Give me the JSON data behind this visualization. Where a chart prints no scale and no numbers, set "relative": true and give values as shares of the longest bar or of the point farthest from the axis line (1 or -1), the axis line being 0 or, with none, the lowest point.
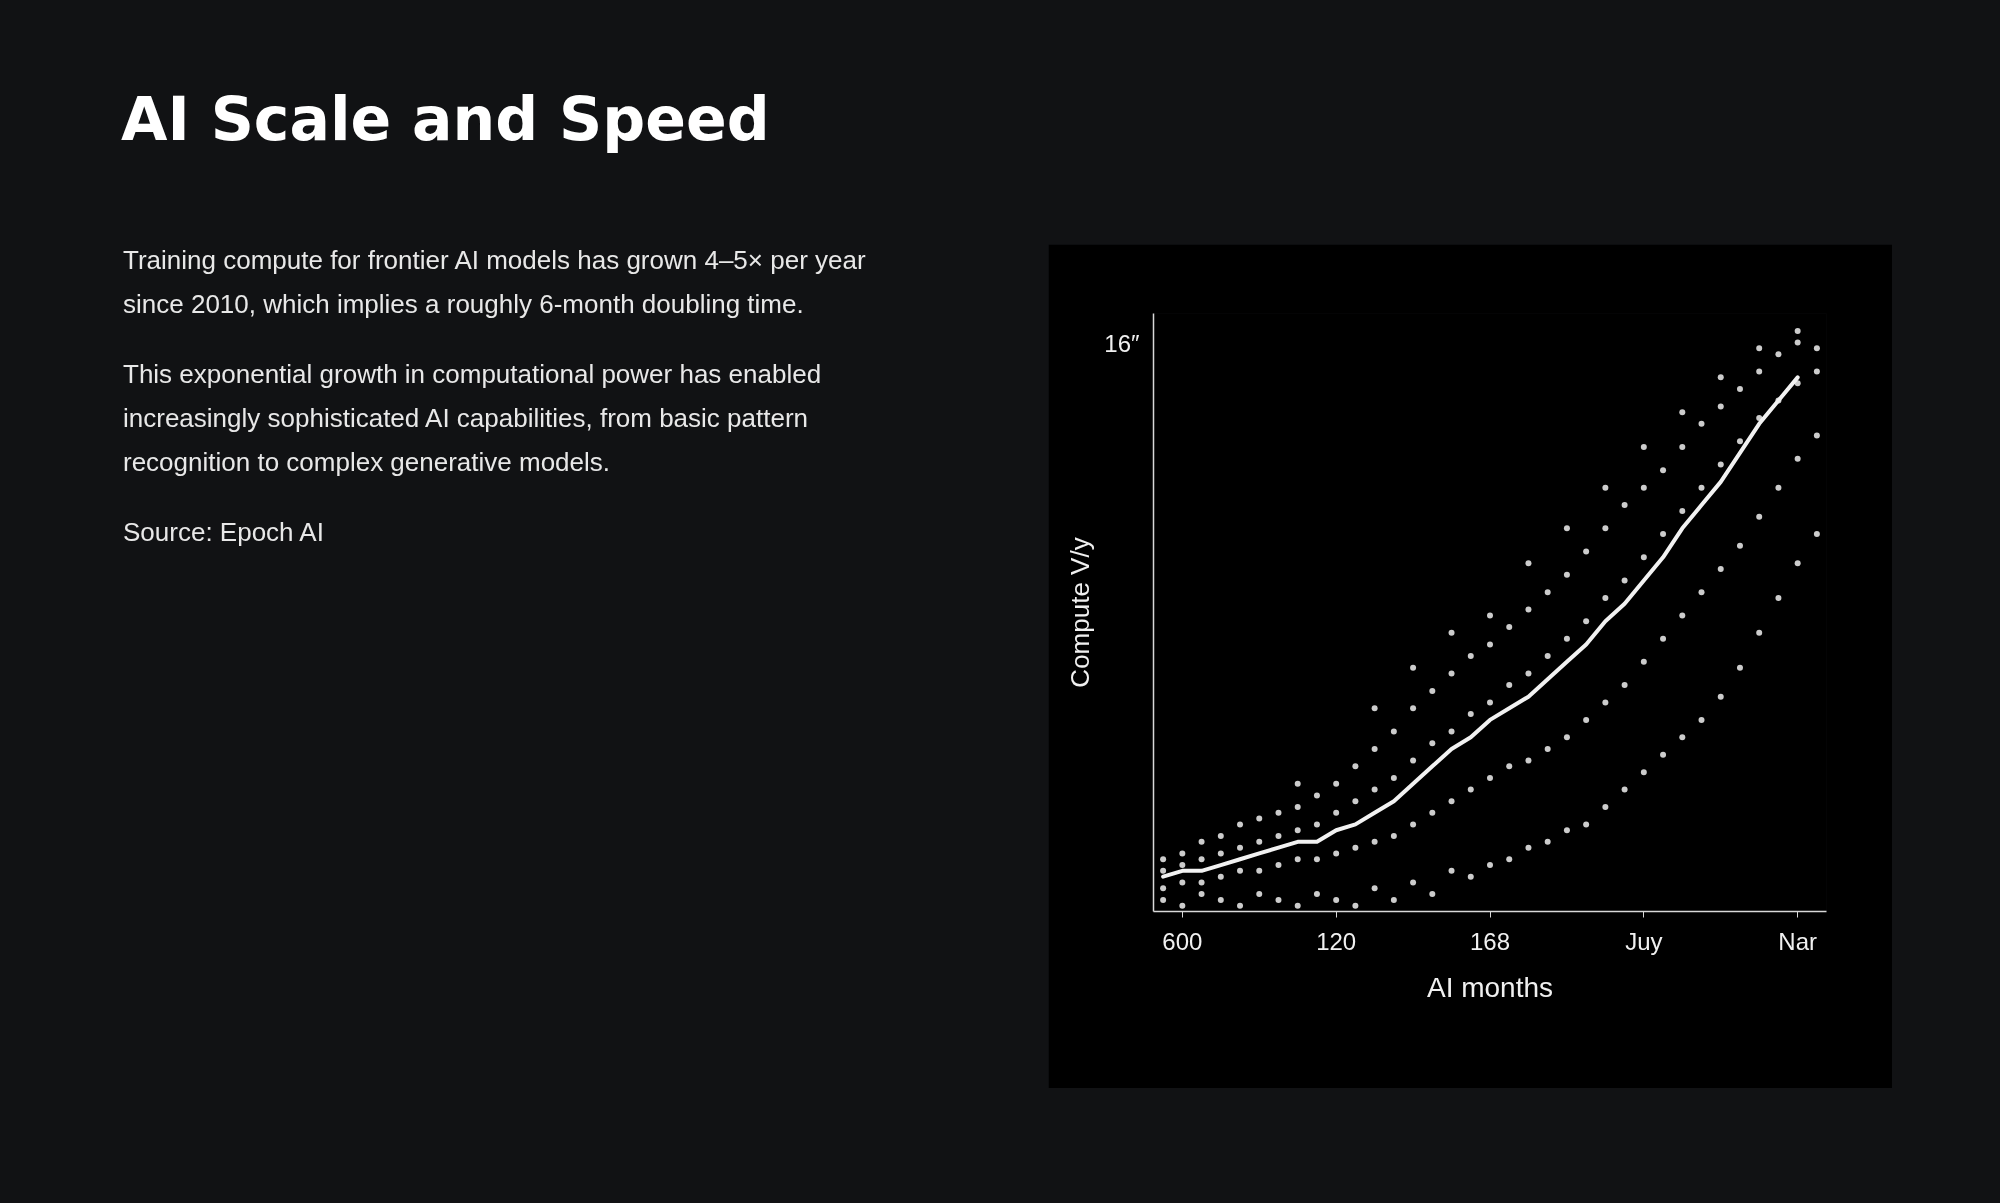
{
  "chart_data": [
    {
      "type": "other",
      "title": "AI Scale and Speed",
      "annotations": [
        "Training compute for frontier AI models has grown 4–5× per year since 2010, which implies a roughly 6-month doubling time.",
        "This exponential growth in computational power has enabled increasingly sophisticated AI capabilities, from basic pattern recognition to complex generative models.",
        "Source: Epoch AI"
      ]
    },
    {
      "type": "scatter",
      "annotations": [
        "16″"
      ],
      "xlabel": "AI months",
      "ylabel": "Compute V/y",
      "relative": true,
      "categories": [
        null,
        "600",
        null,
        null,
        null,
        null,
        null,
        null,
        null,
        "120",
        null,
        null,
        null,
        null,
        null,
        null,
        null,
        "168",
        null,
        null,
        null,
        null,
        null,
        null,
        null,
        "Juy",
        null,
        null,
        null,
        null,
        null,
        null,
        null,
        "Nar",
        null
      ],
      "marker": "circle",
      "series": [
        {
          "color": "#cccccc",
          "values": [
            0.02,
            0.01,
            0.03,
            0.02,
            0.01,
            0.03,
            0.02,
            0.01,
            0.03,
            0.02,
            0.01,
            0.04,
            0.02,
            0.05,
            0.03,
            0.07,
            0.06,
            0.08,
            0.09,
            0.11,
            0.12,
            0.14,
            0.15,
            0.18,
            0.21,
            0.24,
            0.27,
            0.3,
            0.33,
            0.37,
            0.42,
            0.48,
            0.54,
            0.6,
            0.65
          ]
        },
        {
          "color": "#cccccc",
          "values": [
            0.04,
            0.05,
            0.05,
            0.06,
            0.07,
            0.07,
            0.08,
            0.09,
            0.09,
            0.1,
            0.11,
            0.12,
            0.13,
            0.15,
            0.17,
            0.19,
            0.21,
            0.23,
            0.25,
            0.26,
            0.28,
            0.3,
            0.33,
            0.36,
            0.39,
            0.43,
            0.47,
            0.51,
            0.55,
            0.59,
            0.63,
            0.68,
            0.73,
            0.78,
            0.82
          ]
        },
        {
          "color": "#cccccc",
          "values": [
            0.07,
            0.08,
            0.09,
            0.1,
            0.11,
            0.12,
            0.13,
            0.14,
            0.15,
            0.17,
            0.19,
            0.21,
            0.23,
            0.26,
            0.29,
            0.31,
            0.34,
            0.36,
            0.39,
            0.41,
            0.44,
            0.47,
            0.5,
            0.54,
            0.57,
            0.61,
            0.65,
            0.69,
            0.73,
            0.77,
            0.81,
            0.85,
            0.88,
            0.91,
            0.93
          ]
        },
        {
          "color": "#cccccc",
          "values": [
            0.09,
            0.1,
            0.12,
            0.13,
            0.15,
            0.16,
            0.17,
            0.18,
            0.2,
            0.22,
            0.25,
            0.28,
            0.31,
            0.35,
            0.38,
            0.41,
            0.44,
            0.46,
            0.49,
            0.52,
            0.55,
            0.58,
            0.62,
            0.66,
            0.7,
            0.73,
            0.76,
            0.8,
            0.84,
            0.87,
            0.9,
            0.93,
            0.96,
            0.98,
            0.97
          ]
        },
        {
          "color": "#cccccc",
          "values": [
            null,
            null,
            null,
            null,
            null,
            null,
            null,
            0.22,
            null,
            null,
            null,
            0.35,
            null,
            0.42,
            null,
            0.48,
            null,
            0.51,
            null,
            0.6,
            null,
            0.66,
            null,
            0.73,
            null,
            0.8,
            null,
            0.86,
            null,
            0.92,
            null,
            0.97,
            null,
            1.0,
            null
          ]
        },
        {
          "type": "line",
          "marker": "none",
          "line_style": "solid",
          "color": "#f2f2f2",
          "values": [
            0.06,
            0.07,
            0.07,
            0.08,
            0.09,
            0.1,
            0.11,
            0.12,
            0.12,
            0.14,
            0.15,
            0.17,
            0.19,
            0.22,
            0.25,
            0.28,
            0.3,
            0.33,
            0.35,
            0.37,
            0.4,
            0.43,
            0.46,
            0.5,
            0.53,
            0.57,
            0.61,
            0.66,
            0.7,
            0.74,
            0.79,
            0.84,
            0.88,
            0.92,
            null
          ]
        }
      ]
    }
  ]
}
